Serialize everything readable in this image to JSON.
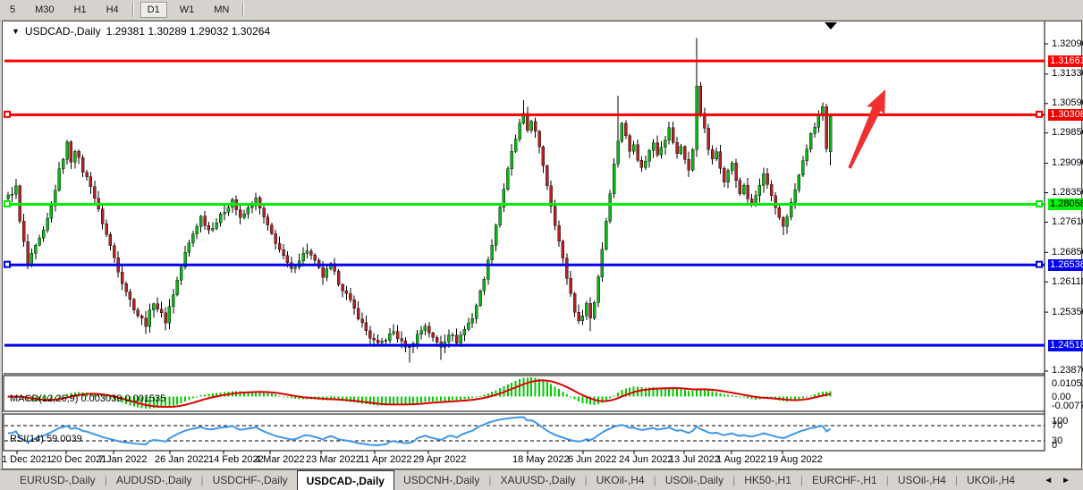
{
  "toolbar": {
    "timeframes": [
      "5",
      "M30",
      "H1",
      "H4",
      "D1",
      "W1",
      "MN"
    ],
    "active_timeframe": "D1",
    "separators_after": [
      "H4",
      "MN"
    ]
  },
  "chart": {
    "symbol_title": "USDCAD-,Daily",
    "ohlc_text": "1.29381 1.30289 1.29032 1.30264",
    "ohlc": {
      "open": "1.29381",
      "high": "1.30289",
      "low": "1.29032",
      "close": "1.30264"
    },
    "dropdown_icon": "▼",
    "top_marker_icon": "▼"
  },
  "price_axis": {
    "ticks": [
      "1.32090",
      "1.31330",
      "1.30590",
      "1.29850",
      "1.29090",
      "1.28350",
      "1.27610",
      "1.26850",
      "1.26110",
      "1.25350",
      "1.23870"
    ]
  },
  "levels": [
    {
      "label": "1.31661",
      "value": 1.31661,
      "color": "#ff0000",
      "text_color": "#ffffff",
      "end_markers": false
    },
    {
      "label": "1.30308",
      "value": 1.30308,
      "color": "#f00000",
      "text_color": "#ffffff",
      "end_markers": true
    },
    {
      "label": "1.28058",
      "value": 1.28058,
      "color": "#00ee00",
      "text_color": "#000000",
      "end_markers": true
    },
    {
      "label": "1.26538",
      "value": 1.26538,
      "color": "#0000ee",
      "text_color": "#ffffff",
      "end_markers": true
    },
    {
      "label": "1.24518",
      "value": 1.24518,
      "color": "#0000ee",
      "text_color": "#ffffff",
      "end_markers": false
    }
  ],
  "macd_panel": {
    "label": "MACD(12,26,9) 0.003039 0.001535",
    "axis_labels": [
      "0.01052",
      "0.00",
      "-0.007744"
    ],
    "histogram_color": "#00cc00",
    "signal_color": "#dd0000"
  },
  "rsi_panel": {
    "label": "RSI(14) 59.0039",
    "axis_labels": [
      "100",
      "70",
      "30",
      "0"
    ],
    "line_color": "#3e97e9",
    "level_lines": [
      70,
      30
    ]
  },
  "date_axis": {
    "labels": [
      "1 Dec 2021",
      "20 Dec 2021",
      "7 Jan 2022",
      "26 Jan 2022",
      "14 Feb 2022",
      "4 Mar 2022",
      "23 Mar 2022",
      "11 Apr 2022",
      "29 Apr 2022",
      "18 May 2022",
      "6 Jun 2022",
      "24 Jun 2022",
      "13 Jul 2022",
      "1 Aug 2022",
      "19 Aug 2022"
    ]
  },
  "tabs": {
    "items": [
      "EURUSD-,Daily",
      "AUDUSD-,Daily",
      "USDCHF-,Daily",
      "USDCAD-,Daily",
      "USDCNH-,Daily",
      "XAUUSD-,Daily",
      "UKOil-,H4",
      "USOil-,Daily",
      "HK50-,H1",
      "EURCHF-,H1",
      "USOil-,H4",
      "UKOil-,H4"
    ],
    "active": "USDCAD-,Daily",
    "scroll_left_icon": "◄",
    "scroll_right_icon": "►"
  },
  "chart_data": {
    "type": "candlestick",
    "symbol": "USDCAD",
    "timeframe": "Daily",
    "date_range": [
      "1 Dec 2021",
      "26 Aug 2022"
    ],
    "y_axis": {
      "min": 1.236,
      "max": 1.326,
      "tick_values": [
        1.3209,
        1.3133,
        1.3059,
        1.2985,
        1.2909,
        1.2835,
        1.2761,
        1.2685,
        1.2611,
        1.2535,
        1.2387
      ]
    },
    "bull_color": "#0ab515",
    "bear_color": "#b22222",
    "wick_color": "#000000",
    "n_bars": 210,
    "close_anchors": [
      [
        0,
        1.2825
      ],
      [
        2,
        1.2848
      ],
      [
        3,
        1.2762
      ],
      [
        5,
        1.2655
      ],
      [
        7,
        1.2698
      ],
      [
        9,
        1.2735
      ],
      [
        11,
        1.28
      ],
      [
        13,
        1.289
      ],
      [
        15,
        1.2958
      ],
      [
        16,
        1.2916
      ],
      [
        17,
        1.2945
      ],
      [
        19,
        1.289
      ],
      [
        21,
        1.2855
      ],
      [
        23,
        1.279
      ],
      [
        25,
        1.273
      ],
      [
        27,
        1.2672
      ],
      [
        29,
        1.2612
      ],
      [
        31,
        1.2565
      ],
      [
        33,
        1.2528
      ],
      [
        35,
        1.2505
      ],
      [
        37,
        1.2562
      ],
      [
        39,
        1.2528
      ],
      [
        40,
        1.2512
      ],
      [
        41,
        1.2548
      ],
      [
        43,
        1.2615
      ],
      [
        45,
        1.2682
      ],
      [
        47,
        1.2732
      ],
      [
        49,
        1.2775
      ],
      [
        51,
        1.2742
      ],
      [
        53,
        1.2762
      ],
      [
        55,
        1.279
      ],
      [
        57,
        1.2818
      ],
      [
        59,
        1.2768
      ],
      [
        61,
        1.2795
      ],
      [
        63,
        1.2818
      ],
      [
        66,
        1.2748
      ],
      [
        68,
        1.2712
      ],
      [
        70,
        1.2672
      ],
      [
        72,
        1.264
      ],
      [
        74,
        1.2668
      ],
      [
        76,
        1.2692
      ],
      [
        78,
        1.266
      ],
      [
        80,
        1.2625
      ],
      [
        82,
        1.2652
      ],
      [
        84,
        1.261
      ],
      [
        86,
        1.2578
      ],
      [
        88,
        1.2542
      ],
      [
        90,
        1.2505
      ],
      [
        92,
        1.2472
      ],
      [
        94,
        1.2452
      ],
      [
        96,
        1.2468
      ],
      [
        98,
        1.2486
      ],
      [
        100,
        1.2458
      ],
      [
        102,
        1.2445
      ],
      [
        104,
        1.2478
      ],
      [
        106,
        1.2502
      ],
      [
        108,
        1.2468
      ],
      [
        110,
        1.245
      ],
      [
        112,
        1.2482
      ],
      [
        114,
        1.2462
      ],
      [
        116,
        1.2492
      ],
      [
        118,
        1.2522
      ],
      [
        120,
        1.2585
      ],
      [
        122,
        1.2662
      ],
      [
        124,
        1.2755
      ],
      [
        126,
        1.2845
      ],
      [
        128,
        1.2935
      ],
      [
        130,
        1.3005
      ],
      [
        131,
        1.3028
      ],
      [
        132,
        1.2992
      ],
      [
        133,
        1.3018
      ],
      [
        134,
        1.2985
      ],
      [
        136,
        1.2905
      ],
      [
        138,
        1.2805
      ],
      [
        140,
        1.2712
      ],
      [
        142,
        1.2622
      ],
      [
        144,
        1.254
      ],
      [
        145,
        1.2508
      ],
      [
        146,
        1.2532
      ],
      [
        147,
        1.2556
      ],
      [
        148,
        1.252
      ],
      [
        149,
        1.2562
      ],
      [
        150,
        1.2625
      ],
      [
        151,
        1.2695
      ],
      [
        152,
        1.2765
      ],
      [
        153,
        1.2838
      ],
      [
        154,
        1.2905
      ],
      [
        155,
        1.2968
      ],
      [
        156,
        1.3012
      ],
      [
        157,
        1.2975
      ],
      [
        158,
        1.294
      ],
      [
        159,
        1.2962
      ],
      [
        160,
        1.2922
      ],
      [
        161,
        1.2895
      ],
      [
        162,
        1.2918
      ],
      [
        164,
        1.2962
      ],
      [
        165,
        1.2935
      ],
      [
        167,
        1.2972
      ],
      [
        168,
        1.2995
      ],
      [
        170,
        1.293
      ],
      [
        171,
        1.2952
      ],
      [
        173,
        1.2892
      ],
      [
        174,
        1.294
      ],
      [
        175,
        1.3105
      ],
      [
        176,
        1.304
      ],
      [
        177,
        1.2992
      ],
      [
        178,
        1.2945
      ],
      [
        179,
        1.2915
      ],
      [
        180,
        1.2938
      ],
      [
        181,
        1.2902
      ],
      [
        182,
        1.2868
      ],
      [
        183,
        1.2888
      ],
      [
        184,
        1.2912
      ],
      [
        185,
        1.2862
      ],
      [
        186,
        1.2832
      ],
      [
        187,
        1.2855
      ],
      [
        188,
        1.2822
      ],
      [
        189,
        1.2802
      ],
      [
        190,
        1.2828
      ],
      [
        191,
        1.2852
      ],
      [
        192,
        1.2882
      ],
      [
        193,
        1.2852
      ],
      [
        194,
        1.2822
      ],
      [
        195,
        1.2792
      ],
      [
        196,
        1.2772
      ],
      [
        197,
        1.2752
      ],
      [
        198,
        1.2778
      ],
      [
        199,
        1.2808
      ],
      [
        200,
        1.2842
      ],
      [
        201,
        1.2878
      ],
      [
        202,
        1.2912
      ],
      [
        203,
        1.2948
      ],
      [
        204,
        1.2978
      ],
      [
        205,
        1.3002
      ],
      [
        206,
        1.3032
      ],
      [
        207,
        1.3048
      ],
      [
        208,
        1.294
      ],
      [
        209,
        1.30264
      ]
    ],
    "bar_overrides": [
      {
        "i": 15,
        "high": 1.2968
      },
      {
        "i": 102,
        "low": 1.2408
      },
      {
        "i": 110,
        "low": 1.2415
      },
      {
        "i": 131,
        "high": 1.3068
      },
      {
        "i": 148,
        "low": 1.2487
      },
      {
        "i": 155,
        "high": 1.3079
      },
      {
        "i": 175,
        "high": 1.3224,
        "low": 1.2925
      },
      {
        "i": 197,
        "low": 1.2728
      },
      {
        "i": 207,
        "high": 1.3062
      },
      {
        "i": 209,
        "open": 1.29381,
        "high": 1.30289,
        "low": 1.29032,
        "close": 1.30264
      }
    ],
    "noise_amp": 0.0013,
    "levels": [
      1.31661,
      1.30308,
      1.28058,
      1.26538,
      1.24518
    ],
    "indicators": [
      {
        "type": "MACD",
        "params": [
          12,
          26,
          9
        ],
        "current_values": [
          0.003039,
          0.001535
        ]
      },
      {
        "type": "RSI",
        "params": [
          14
        ],
        "current_value": 59.0039
      }
    ],
    "last_bar": {
      "open": 1.29381,
      "high": 1.30289,
      "low": 1.29032,
      "close": 1.30264
    },
    "annotations": [
      {
        "type": "arrow-up",
        "color": "#f03030",
        "description": "red up arrow pointing toward resistance line near last candles"
      },
      {
        "type": "triangle-marker",
        "color": "#000000",
        "description": "small black down triangle at top of chart above last candles"
      }
    ]
  }
}
